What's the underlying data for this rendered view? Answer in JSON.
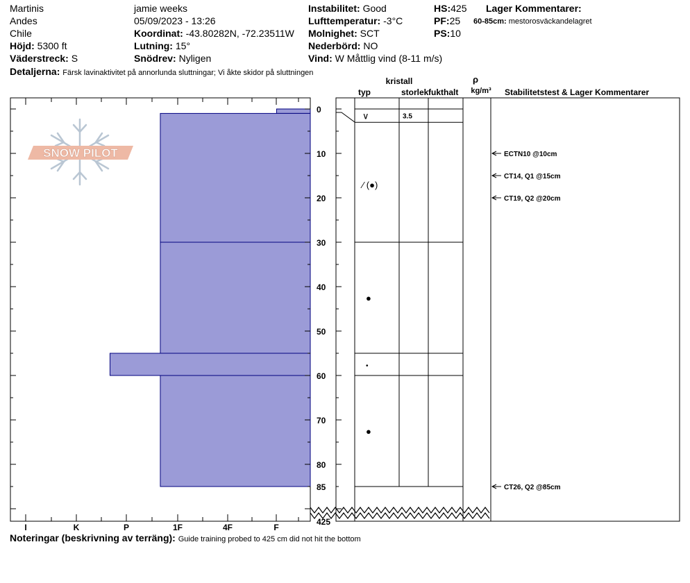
{
  "header": {
    "location": "Martinis",
    "range": "Andes",
    "country": "Chile",
    "elevation_label": "Höjd:",
    "elevation": "5300 ft",
    "aspect_label": "Väderstreck:",
    "aspect": "S",
    "observer": "jamie weeks",
    "datetime": "05/09/2023 - 13:26",
    "coord_label": "Koordinat:",
    "coord": "-43.80282N, -72.23511W",
    "slope_label": "Lutning:",
    "slope": "15°",
    "snowdrift_label": "Snödrev:",
    "snowdrift": "Nyligen",
    "instability_label": "Instabilitet:",
    "instability": "Good",
    "airtemp_label": "Lufttemperatur:",
    "airtemp": "-3°C",
    "cloud_label": "Molnighet:",
    "cloud": "SCT",
    "precip_label": "Nederbörd:",
    "precip": "NO",
    "wind_label": "Vind:",
    "wind": "W Måttlig vind (8-11 m/s)",
    "hs_label": "HS:",
    "hs": "425",
    "pf_label": "PF:",
    "pf": "25",
    "ps_label": "PS:",
    "ps": "10",
    "layer_comments_label": "Lager Kommentarer:",
    "layer_comment_range": "60-85cm:",
    "layer_comment": "mestorosväckandelagret",
    "details_label": "Detaljerna:",
    "details": "Färsk lavinaktivitet på annorlunda sluttningar; Vi åkte skidor på sluttningen",
    "notes_label": "Noteringar (beskrivning av terräng):",
    "notes": "Guide training probed to 425 cm did not hit the bottom"
  },
  "logo": {
    "text": "SNOW PILOT"
  },
  "columns": {
    "crystal": "kristall",
    "type": "typ",
    "size": "storlek",
    "moisture": "fukthalt",
    "rho": "ρ",
    "density_unit": "kg/m³",
    "stability": "Stabilitetstest & Lager Kommentarer"
  },
  "chart_data": {
    "type": "snow-profile",
    "hardness_scale": [
      "I",
      "K",
      "P",
      "1F",
      "4F",
      "F"
    ],
    "depth_ticks": [
      0,
      10,
      20,
      30,
      40,
      50,
      60,
      70,
      80,
      85
    ],
    "total_depth": "425",
    "layers": [
      {
        "top": 0,
        "bottom": 1,
        "hardness": 0.67
      },
      {
        "top": 1,
        "bottom": 30,
        "hardness": 2.98
      },
      {
        "top": 30,
        "bottom": 55,
        "hardness": 2.98
      },
      {
        "top": 55,
        "bottom": 60,
        "hardness": 3.98
      },
      {
        "top": 60,
        "bottom": 85,
        "hardness": 2.98
      }
    ],
    "grain_rows": [
      {
        "top": 0,
        "bottom": 3,
        "grain": "∨",
        "size": "3.5"
      },
      {
        "top": 3,
        "bottom": 30,
        "grain": "⁄ (●)",
        "grain_depth": 17,
        "size": ""
      },
      {
        "top": 30,
        "bottom": 55,
        "grain": "●",
        "grain_depth": 42.5,
        "size": ""
      },
      {
        "top": 55,
        "bottom": 60,
        "grain": "•",
        "grain_depth": 57.5,
        "size": ""
      },
      {
        "top": 60,
        "bottom": 85,
        "grain": "●",
        "grain_depth": 72.5,
        "size": ""
      }
    ],
    "stability_tests": [
      {
        "depth": 10,
        "label": "ECTN10 @10cm"
      },
      {
        "depth": 15,
        "label": "CT14, Q1 @15cm"
      },
      {
        "depth": 20,
        "label": "CT19, Q2 @20cm"
      },
      {
        "depth": 85,
        "label": "CT26, Q2 @85cm"
      }
    ],
    "colors": {
      "fill": "#9b9bd7",
      "stroke": "#00007f"
    }
  }
}
